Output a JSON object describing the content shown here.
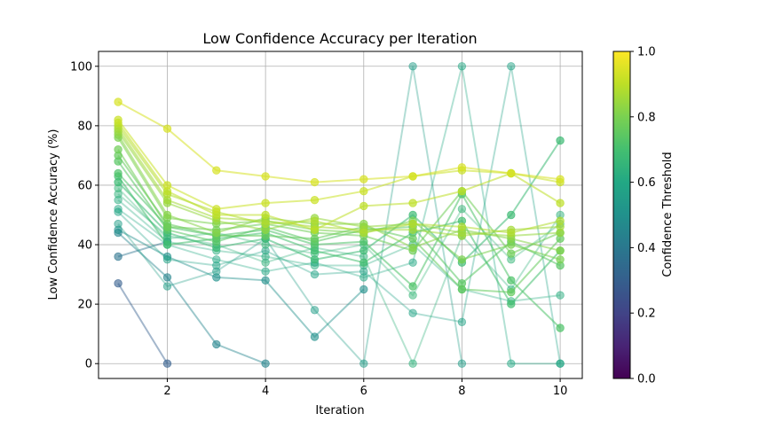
{
  "chart_data": {
    "type": "line",
    "title": "Low Confidence Accuracy per Iteration",
    "xlabel": "Iteration",
    "ylabel": "Low Confidence Accuracy (%)",
    "xlim": [
      0.6,
      10.45
    ],
    "ylim": [
      -5,
      105
    ],
    "xticks": [
      2,
      4,
      6,
      8,
      10
    ],
    "yticks": [
      0,
      20,
      40,
      60,
      80,
      100
    ],
    "grid": true,
    "colormap": "viridis",
    "colorbar": {
      "label": "Confidence Threshold",
      "range": [
        0,
        1
      ],
      "ticks": [
        "0.0",
        "0.2",
        "0.4",
        "0.6",
        "0.8",
        "1.0"
      ]
    },
    "x": [
      1,
      2,
      3,
      4,
      5,
      6,
      7,
      8,
      9,
      10
    ],
    "series": [
      {
        "threshold": 0.3,
        "values": [
          27,
          0,
          null,
          null,
          null,
          null,
          null,
          null,
          null,
          null
        ]
      },
      {
        "threshold": 0.38,
        "values": [
          36,
          41,
          null,
          null,
          null,
          null,
          null,
          null,
          null,
          null
        ]
      },
      {
        "threshold": 0.45,
        "values": [
          44,
          29,
          6.5,
          0,
          null,
          null,
          null,
          null,
          null,
          null
        ]
      },
      {
        "threshold": 0.5,
        "values": [
          45,
          36,
          29,
          28,
          9,
          25,
          null,
          null,
          null,
          null
        ]
      },
      {
        "threshold": 0.55,
        "values": [
          47,
          26,
          31,
          42,
          18,
          0,
          100,
          0,
          null,
          null
        ]
      },
      {
        "threshold": 0.58,
        "values": [
          51,
          35,
          33,
          38,
          30,
          31,
          17,
          14,
          100,
          0
        ]
      },
      {
        "threshold": 0.6,
        "values": [
          52,
          40,
          35,
          31,
          34,
          29,
          34,
          100,
          0,
          0
        ]
      },
      {
        "threshold": 0.62,
        "values": [
          55,
          41,
          38,
          36,
          33,
          33,
          40,
          25,
          21,
          23
        ]
      },
      {
        "threshold": 0.64,
        "values": [
          57,
          43,
          40,
          34,
          39,
          36,
          0,
          43,
          25,
          50
        ]
      },
      {
        "threshold": 0.66,
        "values": [
          59,
          42,
          44,
          40,
          37,
          40,
          23,
          52,
          35,
          47
        ]
      },
      {
        "threshold": 0.68,
        "values": [
          61,
          44,
          39,
          42,
          35,
          38,
          50,
          34,
          50,
          75
        ]
      },
      {
        "threshold": 0.7,
        "values": [
          63,
          40,
          42,
          44,
          38,
          34,
          44,
          48,
          20,
          38
        ]
      },
      {
        "threshold": 0.72,
        "values": [
          64,
          46,
          43,
          45,
          40,
          41,
          26,
          57,
          28,
          12
        ]
      },
      {
        "threshold": 0.74,
        "values": [
          68,
          45,
          41,
          46,
          41,
          45,
          46,
          27,
          41,
          33
        ]
      },
      {
        "threshold": 0.76,
        "values": [
          70,
          47,
          43,
          43,
          42,
          46,
          42,
          25,
          24,
          42
        ]
      },
      {
        "threshold": 0.78,
        "values": [
          72,
          46,
          45,
          47,
          44,
          43,
          38,
          58,
          37,
          44
        ]
      },
      {
        "threshold": 0.8,
        "values": [
          76,
          49,
          47,
          48,
          45,
          44,
          48,
          35,
          40,
          35
        ]
      },
      {
        "threshold": 0.82,
        "values": [
          77,
          50,
          44,
          49,
          47,
          47,
          39,
          45,
          42,
          38
        ]
      },
      {
        "threshold": 0.84,
        "values": [
          78,
          54,
          48,
          45,
          49,
          46,
          47,
          44,
          43,
          44
        ]
      },
      {
        "threshold": 0.86,
        "values": [
          79,
          55,
          49,
          48,
          46,
          45,
          45,
          43,
          45,
          46
        ]
      },
      {
        "threshold": 0.88,
        "values": [
          80,
          57,
          51,
          47,
          48,
          44,
          47,
          46,
          44,
          48
        ]
      },
      {
        "threshold": 0.9,
        "values": [
          81,
          58,
          50,
          50,
          45,
          53,
          54,
          58,
          64,
          54
        ]
      },
      {
        "threshold": 0.92,
        "values": [
          82,
          60,
          52,
          54,
          55,
          58,
          63,
          65,
          64,
          61
        ]
      },
      {
        "threshold": 0.94,
        "values": [
          88,
          79,
          65,
          63,
          61,
          62,
          63,
          66,
          64,
          62
        ]
      }
    ]
  }
}
